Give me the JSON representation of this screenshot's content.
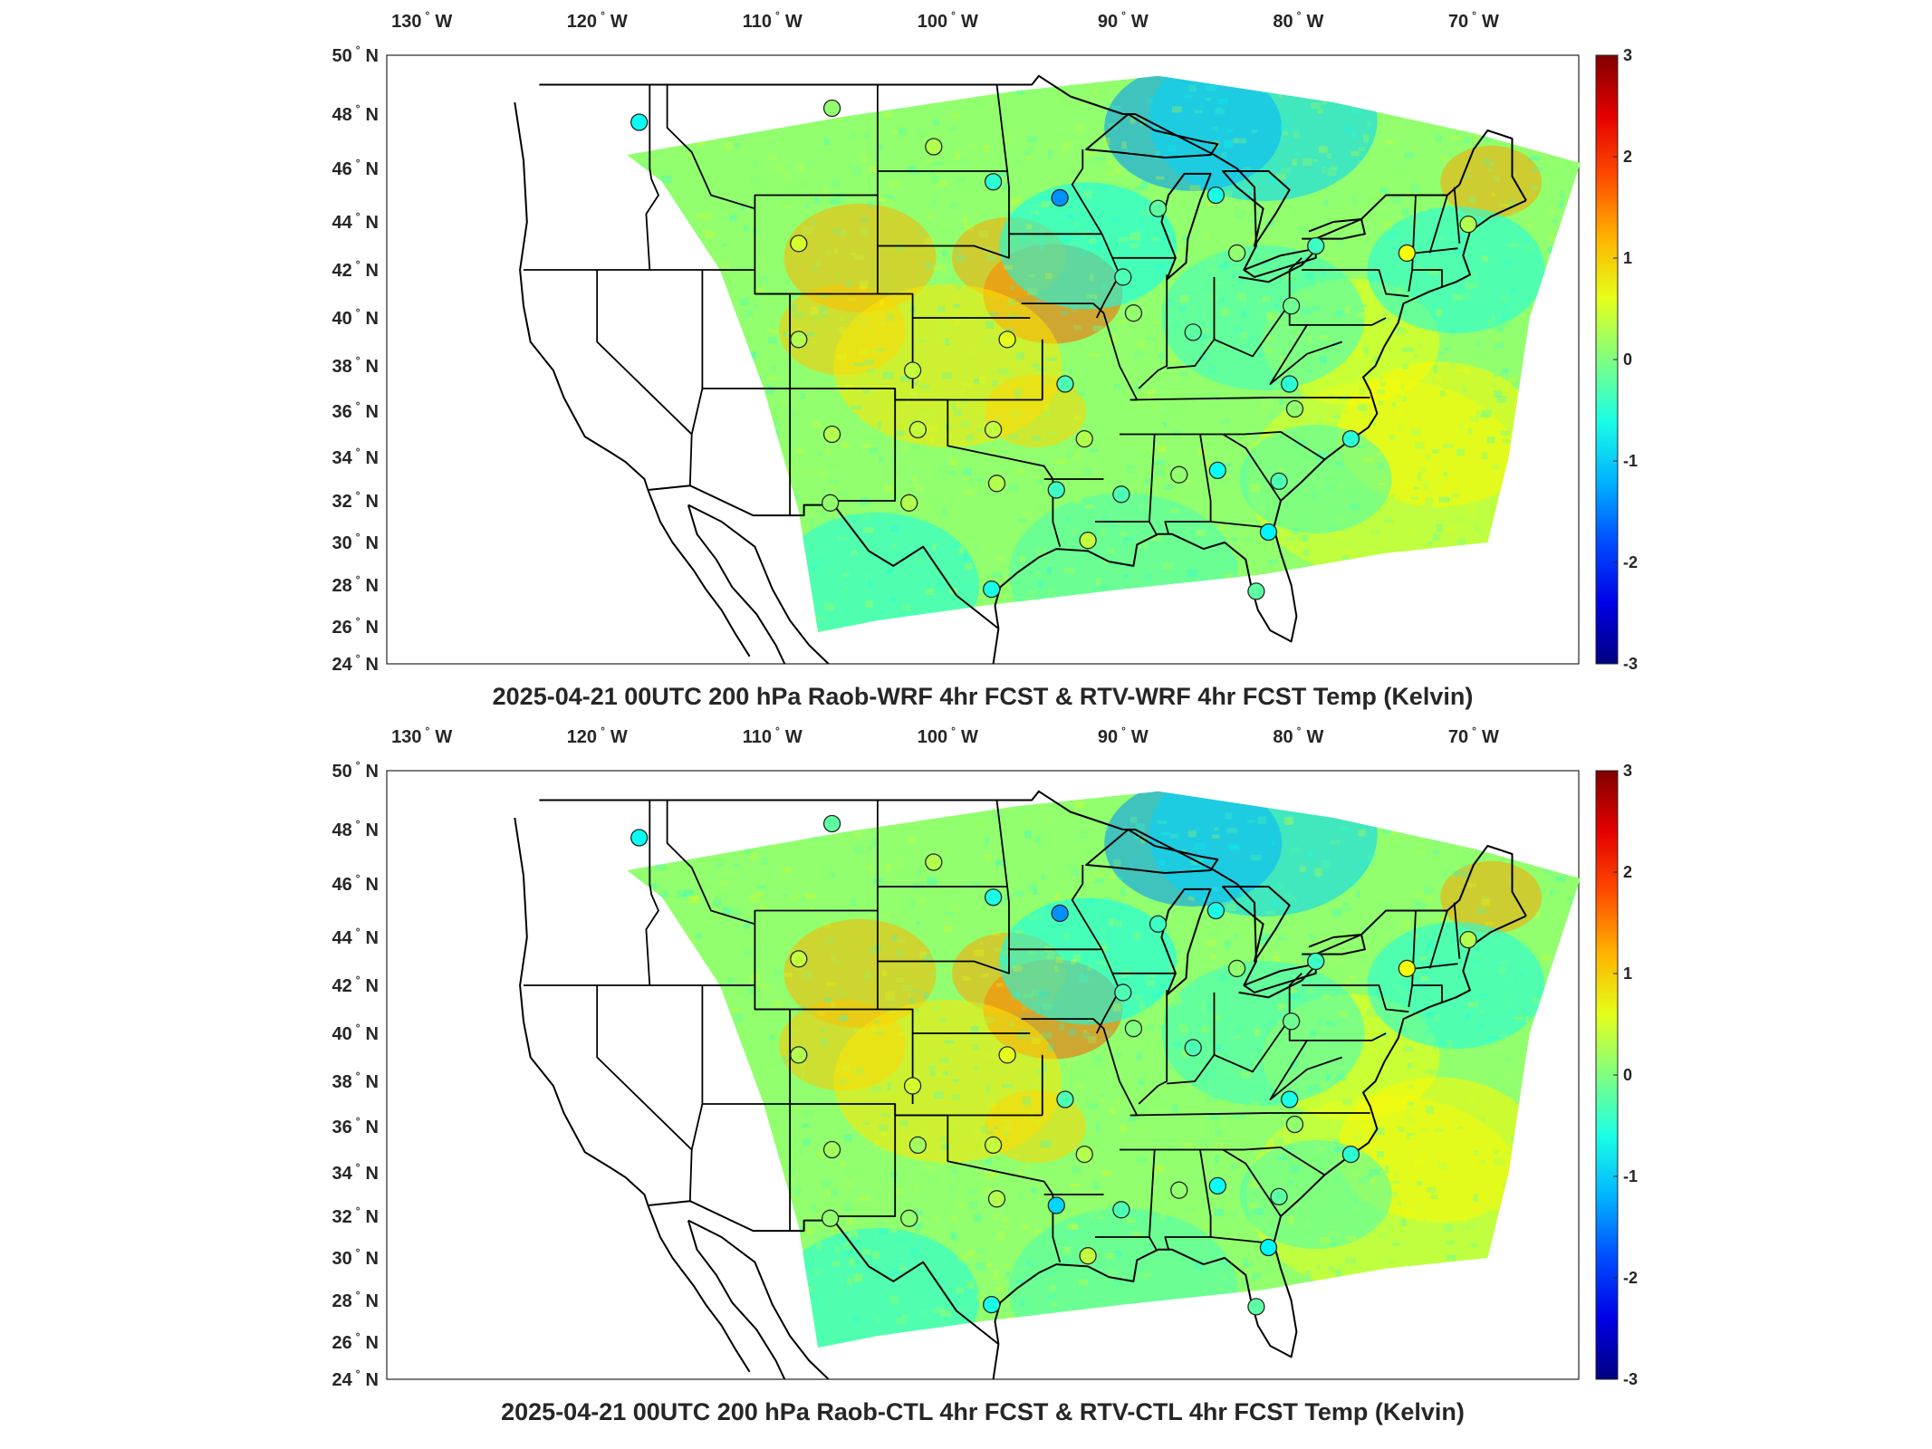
{
  "maps": [
    {
      "title": "2025-04-21 00UTC 200 hPa Raob-WRF 4hr FCST & RTV-WRF 4hr FCST Temp (Kelvin)",
      "lon_labels": [
        {
          "deg": "130",
          "h": "W"
        },
        {
          "deg": "120",
          "h": "W"
        },
        {
          "deg": "110",
          "h": "W"
        },
        {
          "deg": "100",
          "h": "W"
        },
        {
          "deg": "90",
          "h": "W"
        },
        {
          "deg": "80",
          "h": "W"
        },
        {
          "deg": "70",
          "h": "W"
        }
      ],
      "lat_labels": [
        {
          "deg": "50",
          "h": "N"
        },
        {
          "deg": "48",
          "h": "N"
        },
        {
          "deg": "46",
          "h": "N"
        },
        {
          "deg": "44",
          "h": "N"
        },
        {
          "deg": "42",
          "h": "N"
        },
        {
          "deg": "40",
          "h": "N"
        },
        {
          "deg": "38",
          "h": "N"
        },
        {
          "deg": "36",
          "h": "N"
        },
        {
          "deg": "34",
          "h": "N"
        },
        {
          "deg": "32",
          "h": "N"
        },
        {
          "deg": "30",
          "h": "N"
        },
        {
          "deg": "28",
          "h": "N"
        },
        {
          "deg": "26",
          "h": "N"
        },
        {
          "deg": "24",
          "h": "N"
        }
      ],
      "colorbar": {
        "ticks": [
          "3",
          "2",
          "1",
          "0",
          "-1",
          "-2",
          "-3"
        ],
        "range": [
          -3,
          3
        ]
      },
      "stations": [
        {
          "lon": -117.6,
          "lat": 47.7,
          "v": -0.7
        },
        {
          "lon": -106.6,
          "lat": 48.2,
          "v": 0.1
        },
        {
          "lon": -100.8,
          "lat": 46.8,
          "v": 0.3
        },
        {
          "lon": -97.4,
          "lat": 45.5,
          "v": -0.5
        },
        {
          "lon": -93.6,
          "lat": 44.9,
          "v": -1.4
        },
        {
          "lon": -88.0,
          "lat": 44.5,
          "v": -0.2
        },
        {
          "lon": -84.7,
          "lat": 45.0,
          "v": -0.6
        },
        {
          "lon": -108.5,
          "lat": 43.1,
          "v": 0.5
        },
        {
          "lon": -83.5,
          "lat": 42.7,
          "v": 0.1
        },
        {
          "lon": -79.0,
          "lat": 43.0,
          "v": -0.4
        },
        {
          "lon": -73.8,
          "lat": 42.7,
          "v": 0.7
        },
        {
          "lon": -70.3,
          "lat": 43.9,
          "v": 0.3
        },
        {
          "lon": -90.0,
          "lat": 41.7,
          "v": -0.3
        },
        {
          "lon": -89.4,
          "lat": 40.2,
          "v": 0.1
        },
        {
          "lon": -96.6,
          "lat": 39.1,
          "v": 0.6
        },
        {
          "lon": -108.5,
          "lat": 39.1,
          "v": 0.3
        },
        {
          "lon": -102.0,
          "lat": 37.8,
          "v": 0.4
        },
        {
          "lon": -86.0,
          "lat": 39.4,
          "v": -0.2
        },
        {
          "lon": -80.4,
          "lat": 40.5,
          "v": -0.1
        },
        {
          "lon": -93.3,
          "lat": 37.2,
          "v": -0.3
        },
        {
          "lon": -80.5,
          "lat": 37.2,
          "v": -0.5
        },
        {
          "lon": -106.6,
          "lat": 35.0,
          "v": 0.3
        },
        {
          "lon": -101.7,
          "lat": 35.2,
          "v": 0.4
        },
        {
          "lon": -97.4,
          "lat": 35.2,
          "v": 0.4
        },
        {
          "lon": -92.2,
          "lat": 34.8,
          "v": 0.3
        },
        {
          "lon": -80.2,
          "lat": 36.1,
          "v": 0.1
        },
        {
          "lon": -77.0,
          "lat": 34.8,
          "v": -0.5
        },
        {
          "lon": -97.2,
          "lat": 32.8,
          "v": 0.3
        },
        {
          "lon": -93.8,
          "lat": 32.5,
          "v": -0.4
        },
        {
          "lon": -90.1,
          "lat": 32.3,
          "v": -0.3
        },
        {
          "lon": -86.8,
          "lat": 33.2,
          "v": 0.1
        },
        {
          "lon": -84.6,
          "lat": 33.4,
          "v": -0.7
        },
        {
          "lon": -81.1,
          "lat": 32.9,
          "v": -0.3
        },
        {
          "lon": -106.7,
          "lat": 31.9,
          "v": 0.1
        },
        {
          "lon": -102.2,
          "lat": 31.9,
          "v": 0.3
        },
        {
          "lon": -92.0,
          "lat": 30.1,
          "v": 0.4
        },
        {
          "lon": -81.7,
          "lat": 30.5,
          "v": -0.8
        },
        {
          "lon": -97.5,
          "lat": 27.8,
          "v": -0.6
        },
        {
          "lon": -82.4,
          "lat": 27.7,
          "v": -0.2
        }
      ]
    },
    {
      "title": "2025-04-21 00UTC 200 hPa Raob-CTL 4hr FCST & RTV-CTL 4hr FCST Temp (Kelvin)",
      "lon_labels": [
        {
          "deg": "130",
          "h": "W"
        },
        {
          "deg": "120",
          "h": "W"
        },
        {
          "deg": "110",
          "h": "W"
        },
        {
          "deg": "100",
          "h": "W"
        },
        {
          "deg": "90",
          "h": "W"
        },
        {
          "deg": "80",
          "h": "W"
        },
        {
          "deg": "70",
          "h": "W"
        }
      ],
      "lat_labels": [
        {
          "deg": "50",
          "h": "N"
        },
        {
          "deg": "48",
          "h": "N"
        },
        {
          "deg": "46",
          "h": "N"
        },
        {
          "deg": "44",
          "h": "N"
        },
        {
          "deg": "42",
          "h": "N"
        },
        {
          "deg": "40",
          "h": "N"
        },
        {
          "deg": "38",
          "h": "N"
        },
        {
          "deg": "36",
          "h": "N"
        },
        {
          "deg": "34",
          "h": "N"
        },
        {
          "deg": "32",
          "h": "N"
        },
        {
          "deg": "30",
          "h": "N"
        },
        {
          "deg": "28",
          "h": "N"
        },
        {
          "deg": "26",
          "h": "N"
        },
        {
          "deg": "24",
          "h": "N"
        }
      ],
      "colorbar": {
        "ticks": [
          "3",
          "2",
          "1",
          "0",
          "-1",
          "-2",
          "-3"
        ],
        "range": [
          -3,
          3
        ]
      },
      "stations": [
        {
          "lon": -117.6,
          "lat": 47.7,
          "v": -0.7
        },
        {
          "lon": -106.6,
          "lat": 48.2,
          "v": -0.2
        },
        {
          "lon": -100.8,
          "lat": 46.8,
          "v": 0.3
        },
        {
          "lon": -97.4,
          "lat": 45.5,
          "v": -0.6
        },
        {
          "lon": -93.6,
          "lat": 44.9,
          "v": -1.4
        },
        {
          "lon": -88.0,
          "lat": 44.5,
          "v": -0.4
        },
        {
          "lon": -84.7,
          "lat": 45.0,
          "v": -0.6
        },
        {
          "lon": -108.5,
          "lat": 43.1,
          "v": 0.4
        },
        {
          "lon": -83.5,
          "lat": 42.7,
          "v": 0.1
        },
        {
          "lon": -79.0,
          "lat": 43.0,
          "v": -0.4
        },
        {
          "lon": -73.8,
          "lat": 42.7,
          "v": 0.7
        },
        {
          "lon": -70.3,
          "lat": 43.9,
          "v": 0.3
        },
        {
          "lon": -90.0,
          "lat": 41.7,
          "v": -0.3
        },
        {
          "lon": -89.4,
          "lat": 40.2,
          "v": 0.0
        },
        {
          "lon": -96.6,
          "lat": 39.1,
          "v": 0.6
        },
        {
          "lon": -108.5,
          "lat": 39.1,
          "v": 0.3
        },
        {
          "lon": -102.0,
          "lat": 37.8,
          "v": 0.5
        },
        {
          "lon": -86.0,
          "lat": 39.4,
          "v": -0.3
        },
        {
          "lon": -80.4,
          "lat": 40.5,
          "v": -0.1
        },
        {
          "lon": -93.3,
          "lat": 37.2,
          "v": -0.3
        },
        {
          "lon": -80.5,
          "lat": 37.2,
          "v": -0.6
        },
        {
          "lon": -106.6,
          "lat": 35.0,
          "v": 0.2
        },
        {
          "lon": -101.7,
          "lat": 35.2,
          "v": 0.2
        },
        {
          "lon": -97.4,
          "lat": 35.2,
          "v": 0.4
        },
        {
          "lon": -92.2,
          "lat": 34.8,
          "v": 0.3
        },
        {
          "lon": -80.2,
          "lat": 36.1,
          "v": 0.1
        },
        {
          "lon": -77.0,
          "lat": 34.8,
          "v": -0.5
        },
        {
          "lon": -97.2,
          "lat": 32.8,
          "v": 0.3
        },
        {
          "lon": -93.8,
          "lat": 32.5,
          "v": -1.0
        },
        {
          "lon": -90.1,
          "lat": 32.3,
          "v": -0.3
        },
        {
          "lon": -86.8,
          "lat": 33.2,
          "v": 0.1
        },
        {
          "lon": -84.6,
          "lat": 33.4,
          "v": -0.7
        },
        {
          "lon": -81.1,
          "lat": 32.9,
          "v": -0.2
        },
        {
          "lon": -106.7,
          "lat": 31.9,
          "v": 0.1
        },
        {
          "lon": -102.2,
          "lat": 31.9,
          "v": 0.1
        },
        {
          "lon": -92.0,
          "lat": 30.1,
          "v": 0.4
        },
        {
          "lon": -81.7,
          "lat": 30.5,
          "v": -0.8
        },
        {
          "lon": -97.5,
          "lat": 27.8,
          "v": -0.6
        },
        {
          "lon": -82.4,
          "lat": 27.7,
          "v": -0.2
        }
      ]
    }
  ]
}
